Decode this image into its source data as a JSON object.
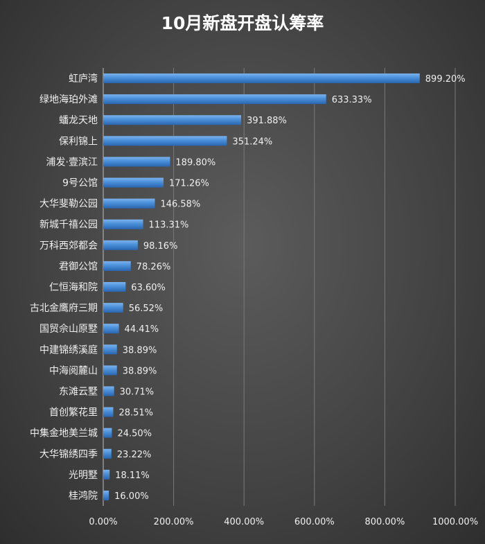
{
  "chart_data": {
    "type": "bar",
    "orientation": "horizontal",
    "title": "10月新盘开盘认筹率",
    "categories": [
      "虹庐湾",
      "绿地海珀外滩",
      "蟠龙天地",
      "保利锦上",
      "浦发·壹滨江",
      "9号公馆",
      "大华斐勒公园",
      "新城千禧公园",
      "万科西郊都会",
      "君御公馆",
      "仁恒海和院",
      "古北金鹰府三期",
      "国贸佘山原墅",
      "中建锦绣溪庭",
      "中海阅麓山",
      "东滩云墅",
      "首创繁花里",
      "中集金地美兰城",
      "大华锦绣四季",
      "光明墅",
      "桂鸿院"
    ],
    "values": [
      899.2,
      633.33,
      391.88,
      351.24,
      189.8,
      171.26,
      146.58,
      113.31,
      98.16,
      78.26,
      63.6,
      56.52,
      44.41,
      38.89,
      38.89,
      30.71,
      28.51,
      24.5,
      23.22,
      18.11,
      16.0
    ],
    "value_labels": [
      "899.20%",
      "633.33%",
      "391.88%",
      "351.24%",
      "189.80%",
      "171.26%",
      "146.58%",
      "113.31%",
      "98.16%",
      "78.26%",
      "63.60%",
      "56.52%",
      "44.41%",
      "38.89%",
      "38.89%",
      "30.71%",
      "28.51%",
      "24.50%",
      "23.22%",
      "18.11%",
      "16.00%"
    ],
    "x_ticks": [
      0,
      200,
      400,
      600,
      800,
      1000
    ],
    "x_tick_labels": [
      "0.00%",
      "200.00%",
      "400.00%",
      "600.00%",
      "800.00%",
      "1000.00%"
    ],
    "xlim": [
      0,
      1000
    ],
    "unit": "%",
    "grid": true,
    "bar_color": "#4a8fd8"
  }
}
